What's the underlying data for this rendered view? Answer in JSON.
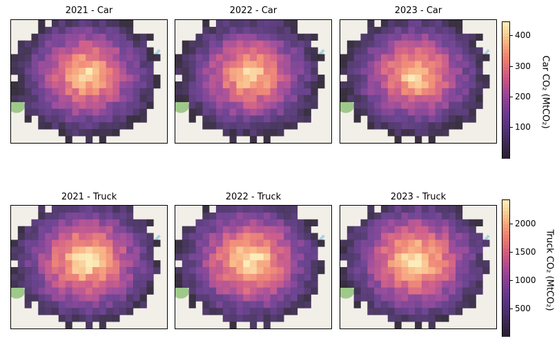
{
  "chart_data": {
    "type": "heatmap",
    "panels": [
      {
        "title": "2021 - Car",
        "row": "car",
        "year": "2021"
      },
      {
        "title": "2022 - Car",
        "row": "car",
        "year": "2022"
      },
      {
        "title": "2023 - Car",
        "row": "car",
        "year": "2023"
      },
      {
        "title": "2021 - Truck",
        "row": "truck",
        "year": "2021"
      },
      {
        "title": "2022 - Truck",
        "row": "truck",
        "year": "2022"
      },
      {
        "title": "2023 - Truck",
        "row": "truck",
        "year": "2023"
      }
    ],
    "colorbars": {
      "car": {
        "label": "Car CO₂ (MtCO₂)",
        "ticks": [
          "100",
          "200",
          "300",
          "400"
        ],
        "tick_values": [
          100,
          200,
          300,
          400
        ],
        "range": [
          0,
          450
        ]
      },
      "truck": {
        "label": "Truck CO₂ (MtCO₂)",
        "ticks": [
          "500",
          "1000",
          "1500",
          "2000"
        ],
        "tick_values": [
          500,
          1000,
          1500,
          2000
        ],
        "range": [
          0,
          2450
        ]
      }
    },
    "colormap": "magma",
    "basemap": true,
    "grid": false
  },
  "colors": {
    "basemap": "#f2efe9",
    "water": "#aad3df",
    "park": "#9fc98a"
  }
}
